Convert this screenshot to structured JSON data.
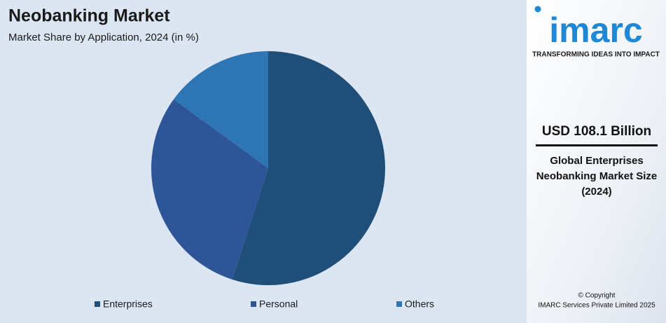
{
  "chart_data": {
    "type": "pie",
    "title": "Neobanking Market",
    "subtitle": "Market Share by Application, 2024 (in %)",
    "categories": [
      "Enterprises",
      "Personal",
      "Others"
    ],
    "values": [
      55,
      30,
      15
    ],
    "colors": [
      "#1f4e79",
      "#2e5597",
      "#2e75b6"
    ],
    "legend": "bottom"
  },
  "sidebar": {
    "logo": "imarc",
    "tagline": "TRANSFORMING IDEAS INTO IMPACT",
    "headline": "USD 108.1 Billion",
    "description": [
      "Global Enterprises",
      "Neobanking Market Size",
      "(2024)"
    ],
    "copyright": [
      "© Copyright",
      "IMARC Services Private Limited 2025"
    ]
  }
}
